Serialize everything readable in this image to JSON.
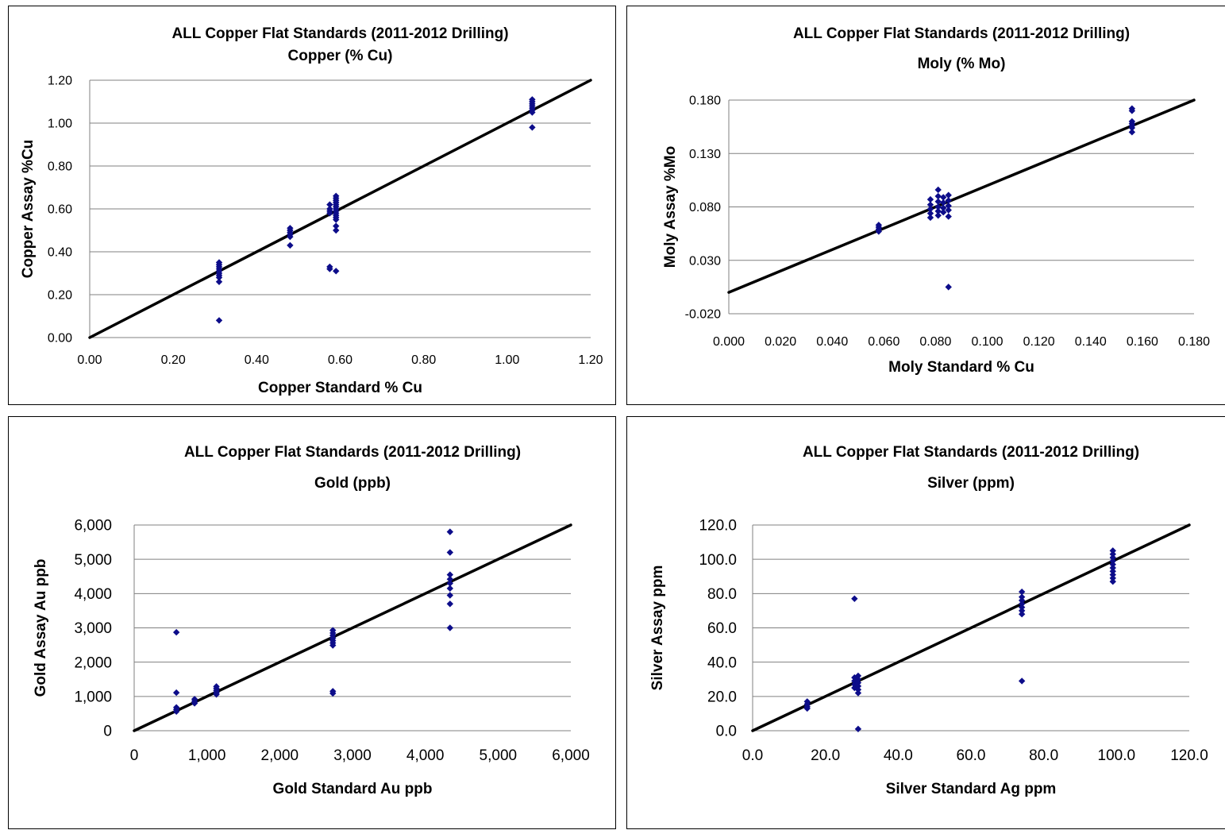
{
  "chart_data": [
    {
      "type": "scatter",
      "title": "ALL Copper Flat Standards (2011-2012 Drilling)",
      "subtitle": "Copper (% Cu)",
      "xlabel": "Copper Standard % Cu",
      "ylabel": "Copper Assay  %Cu",
      "xlim": [
        0,
        1.2
      ],
      "ylim": [
        0,
        1.2
      ],
      "xticks": [
        "0.00",
        "0.20",
        "0.40",
        "0.60",
        "0.80",
        "1.00",
        "1.20"
      ],
      "yticks": [
        "0.00",
        "0.20",
        "0.40",
        "0.60",
        "0.80",
        "1.00",
        "1.20"
      ],
      "grid": "horizontal",
      "line": [
        [
          0,
          0
        ],
        [
          1.2,
          1.2
        ]
      ],
      "points": [
        [
          0.31,
          0.35
        ],
        [
          0.31,
          0.34
        ],
        [
          0.31,
          0.33
        ],
        [
          0.31,
          0.32
        ],
        [
          0.31,
          0.31
        ],
        [
          0.31,
          0.3
        ],
        [
          0.31,
          0.29
        ],
        [
          0.31,
          0.28
        ],
        [
          0.31,
          0.26
        ],
        [
          0.31,
          0.08
        ],
        [
          0.48,
          0.51
        ],
        [
          0.48,
          0.5
        ],
        [
          0.48,
          0.49
        ],
        [
          0.48,
          0.48
        ],
        [
          0.48,
          0.47
        ],
        [
          0.48,
          0.43
        ],
        [
          0.575,
          0.62
        ],
        [
          0.575,
          0.6
        ],
        [
          0.575,
          0.59
        ],
        [
          0.575,
          0.58
        ],
        [
          0.575,
          0.33
        ],
        [
          0.575,
          0.32
        ],
        [
          0.59,
          0.66
        ],
        [
          0.59,
          0.65
        ],
        [
          0.59,
          0.64
        ],
        [
          0.59,
          0.63
        ],
        [
          0.59,
          0.62
        ],
        [
          0.59,
          0.61
        ],
        [
          0.59,
          0.6
        ],
        [
          0.59,
          0.59
        ],
        [
          0.59,
          0.58
        ],
        [
          0.59,
          0.57
        ],
        [
          0.59,
          0.56
        ],
        [
          0.59,
          0.55
        ],
        [
          0.59,
          0.52
        ],
        [
          0.59,
          0.5
        ],
        [
          0.59,
          0.31
        ],
        [
          1.06,
          1.11
        ],
        [
          1.06,
          1.1
        ],
        [
          1.06,
          1.09
        ],
        [
          1.06,
          1.08
        ],
        [
          1.06,
          1.07
        ],
        [
          1.06,
          1.06
        ],
        [
          1.06,
          1.05
        ],
        [
          1.06,
          0.98
        ]
      ]
    },
    {
      "type": "scatter",
      "title": "ALL Copper Flat Standards (2011-2012 Drilling)",
      "subtitle": "Moly (% Mo)",
      "xlabel": "Moly Standard % Cu",
      "ylabel": "Moly Assay  %Mo",
      "xlim": [
        0,
        0.18
      ],
      "ylim": [
        -0.02,
        0.18
      ],
      "xticks": [
        "0.000",
        "0.020",
        "0.040",
        "0.060",
        "0.080",
        "0.100",
        "0.120",
        "0.140",
        "0.160",
        "0.180"
      ],
      "yticks": [
        "-0.020",
        "0.030",
        "0.080",
        "0.130",
        "0.180"
      ],
      "grid": "horizontal",
      "line": [
        [
          0,
          0
        ],
        [
          0.18,
          0.18
        ]
      ],
      "points": [
        [
          0.058,
          0.063
        ],
        [
          0.058,
          0.061
        ],
        [
          0.058,
          0.059
        ],
        [
          0.058,
          0.057
        ],
        [
          0.078,
          0.087
        ],
        [
          0.078,
          0.082
        ],
        [
          0.078,
          0.078
        ],
        [
          0.078,
          0.074
        ],
        [
          0.078,
          0.07
        ],
        [
          0.081,
          0.096
        ],
        [
          0.081,
          0.09
        ],
        [
          0.081,
          0.085
        ],
        [
          0.081,
          0.08
        ],
        [
          0.081,
          0.076
        ],
        [
          0.081,
          0.072
        ],
        [
          0.083,
          0.089
        ],
        [
          0.083,
          0.084
        ],
        [
          0.083,
          0.079
        ],
        [
          0.083,
          0.075
        ],
        [
          0.085,
          0.091
        ],
        [
          0.085,
          0.086
        ],
        [
          0.085,
          0.081
        ],
        [
          0.085,
          0.077
        ],
        [
          0.085,
          0.071
        ],
        [
          0.085,
          0.005
        ],
        [
          0.156,
          0.172
        ],
        [
          0.156,
          0.17
        ],
        [
          0.156,
          0.16
        ],
        [
          0.156,
          0.158
        ],
        [
          0.156,
          0.156
        ],
        [
          0.156,
          0.154
        ],
        [
          0.156,
          0.15
        ]
      ]
    },
    {
      "type": "scatter",
      "title": "ALL Copper Flat Standards (2011-2012 Drilling)",
      "subtitle": "Gold (ppb)",
      "xlabel": "Gold Standard Au ppb",
      "ylabel": "Gold Assay  Au ppb",
      "xlim": [
        0,
        6000
      ],
      "ylim": [
        0,
        6000
      ],
      "xticks": [
        "0",
        "1,000",
        "2,000",
        "3,000",
        "4,000",
        "5,000",
        "6,000"
      ],
      "yticks": [
        "0",
        "1,000",
        "2,000",
        "3,000",
        "4,000",
        "5,000",
        "6,000"
      ],
      "grid": "horizontal",
      "line": [
        [
          0,
          0
        ],
        [
          6000,
          6000
        ]
      ],
      "points": [
        [
          580,
          2870
        ],
        [
          580,
          1110
        ],
        [
          580,
          680
        ],
        [
          580,
          620
        ],
        [
          580,
          560
        ],
        [
          830,
          920
        ],
        [
          830,
          860
        ],
        [
          830,
          800
        ],
        [
          1130,
          1290
        ],
        [
          1130,
          1230
        ],
        [
          1130,
          1170
        ],
        [
          1130,
          1110
        ],
        [
          1130,
          1060
        ],
        [
          2730,
          2930
        ],
        [
          2730,
          2850
        ],
        [
          2730,
          2780
        ],
        [
          2730,
          2700
        ],
        [
          2730,
          2630
        ],
        [
          2730,
          2560
        ],
        [
          2730,
          2490
        ],
        [
          2730,
          1150
        ],
        [
          2730,
          1090
        ],
        [
          4340,
          5800
        ],
        [
          4340,
          5200
        ],
        [
          4340,
          4550
        ],
        [
          4340,
          4420
        ],
        [
          4340,
          4300
        ],
        [
          4340,
          4150
        ],
        [
          4340,
          3950
        ],
        [
          4340,
          3700
        ],
        [
          4340,
          3000
        ]
      ]
    },
    {
      "type": "scatter",
      "title": "ALL Copper Flat Standards (2011-2012 Drilling)",
      "subtitle": "Silver (ppm)",
      "xlabel": "Silver Standard Ag ppm",
      "ylabel": "Silver Assay ppm",
      "xlim": [
        0,
        120
      ],
      "ylim": [
        0,
        120
      ],
      "xticks": [
        "0.0",
        "20.0",
        "40.0",
        "60.0",
        "80.0",
        "100.0",
        "120.0"
      ],
      "yticks": [
        "0.0",
        "20.0",
        "40.0",
        "60.0",
        "80.0",
        "100.0",
        "120.0"
      ],
      "grid": "horizontal",
      "line": [
        [
          0,
          0
        ],
        [
          120,
          120
        ]
      ],
      "points": [
        [
          15,
          17
        ],
        [
          15,
          15.5
        ],
        [
          15,
          14
        ],
        [
          15,
          13
        ],
        [
          28,
          77
        ],
        [
          28,
          31
        ],
        [
          28,
          29
        ],
        [
          28,
          27
        ],
        [
          28,
          25
        ],
        [
          29,
          32
        ],
        [
          29,
          30
        ],
        [
          29,
          28
        ],
        [
          29,
          26
        ],
        [
          29,
          24
        ],
        [
          29,
          22
        ],
        [
          29,
          1
        ],
        [
          74,
          81
        ],
        [
          74,
          78
        ],
        [
          74,
          76
        ],
        [
          74,
          74
        ],
        [
          74,
          72
        ],
        [
          74,
          70
        ],
        [
          74,
          68
        ],
        [
          74,
          29
        ],
        [
          99,
          105
        ],
        [
          99,
          103
        ],
        [
          99,
          101
        ],
        [
          99,
          99
        ],
        [
          99,
          97
        ],
        [
          99,
          95
        ],
        [
          99,
          93
        ],
        [
          99,
          91
        ],
        [
          99,
          89
        ],
        [
          99,
          87
        ]
      ]
    }
  ],
  "colors": {
    "marker": "#0d0d8a",
    "line": "#000000",
    "grid": "#808080"
  }
}
